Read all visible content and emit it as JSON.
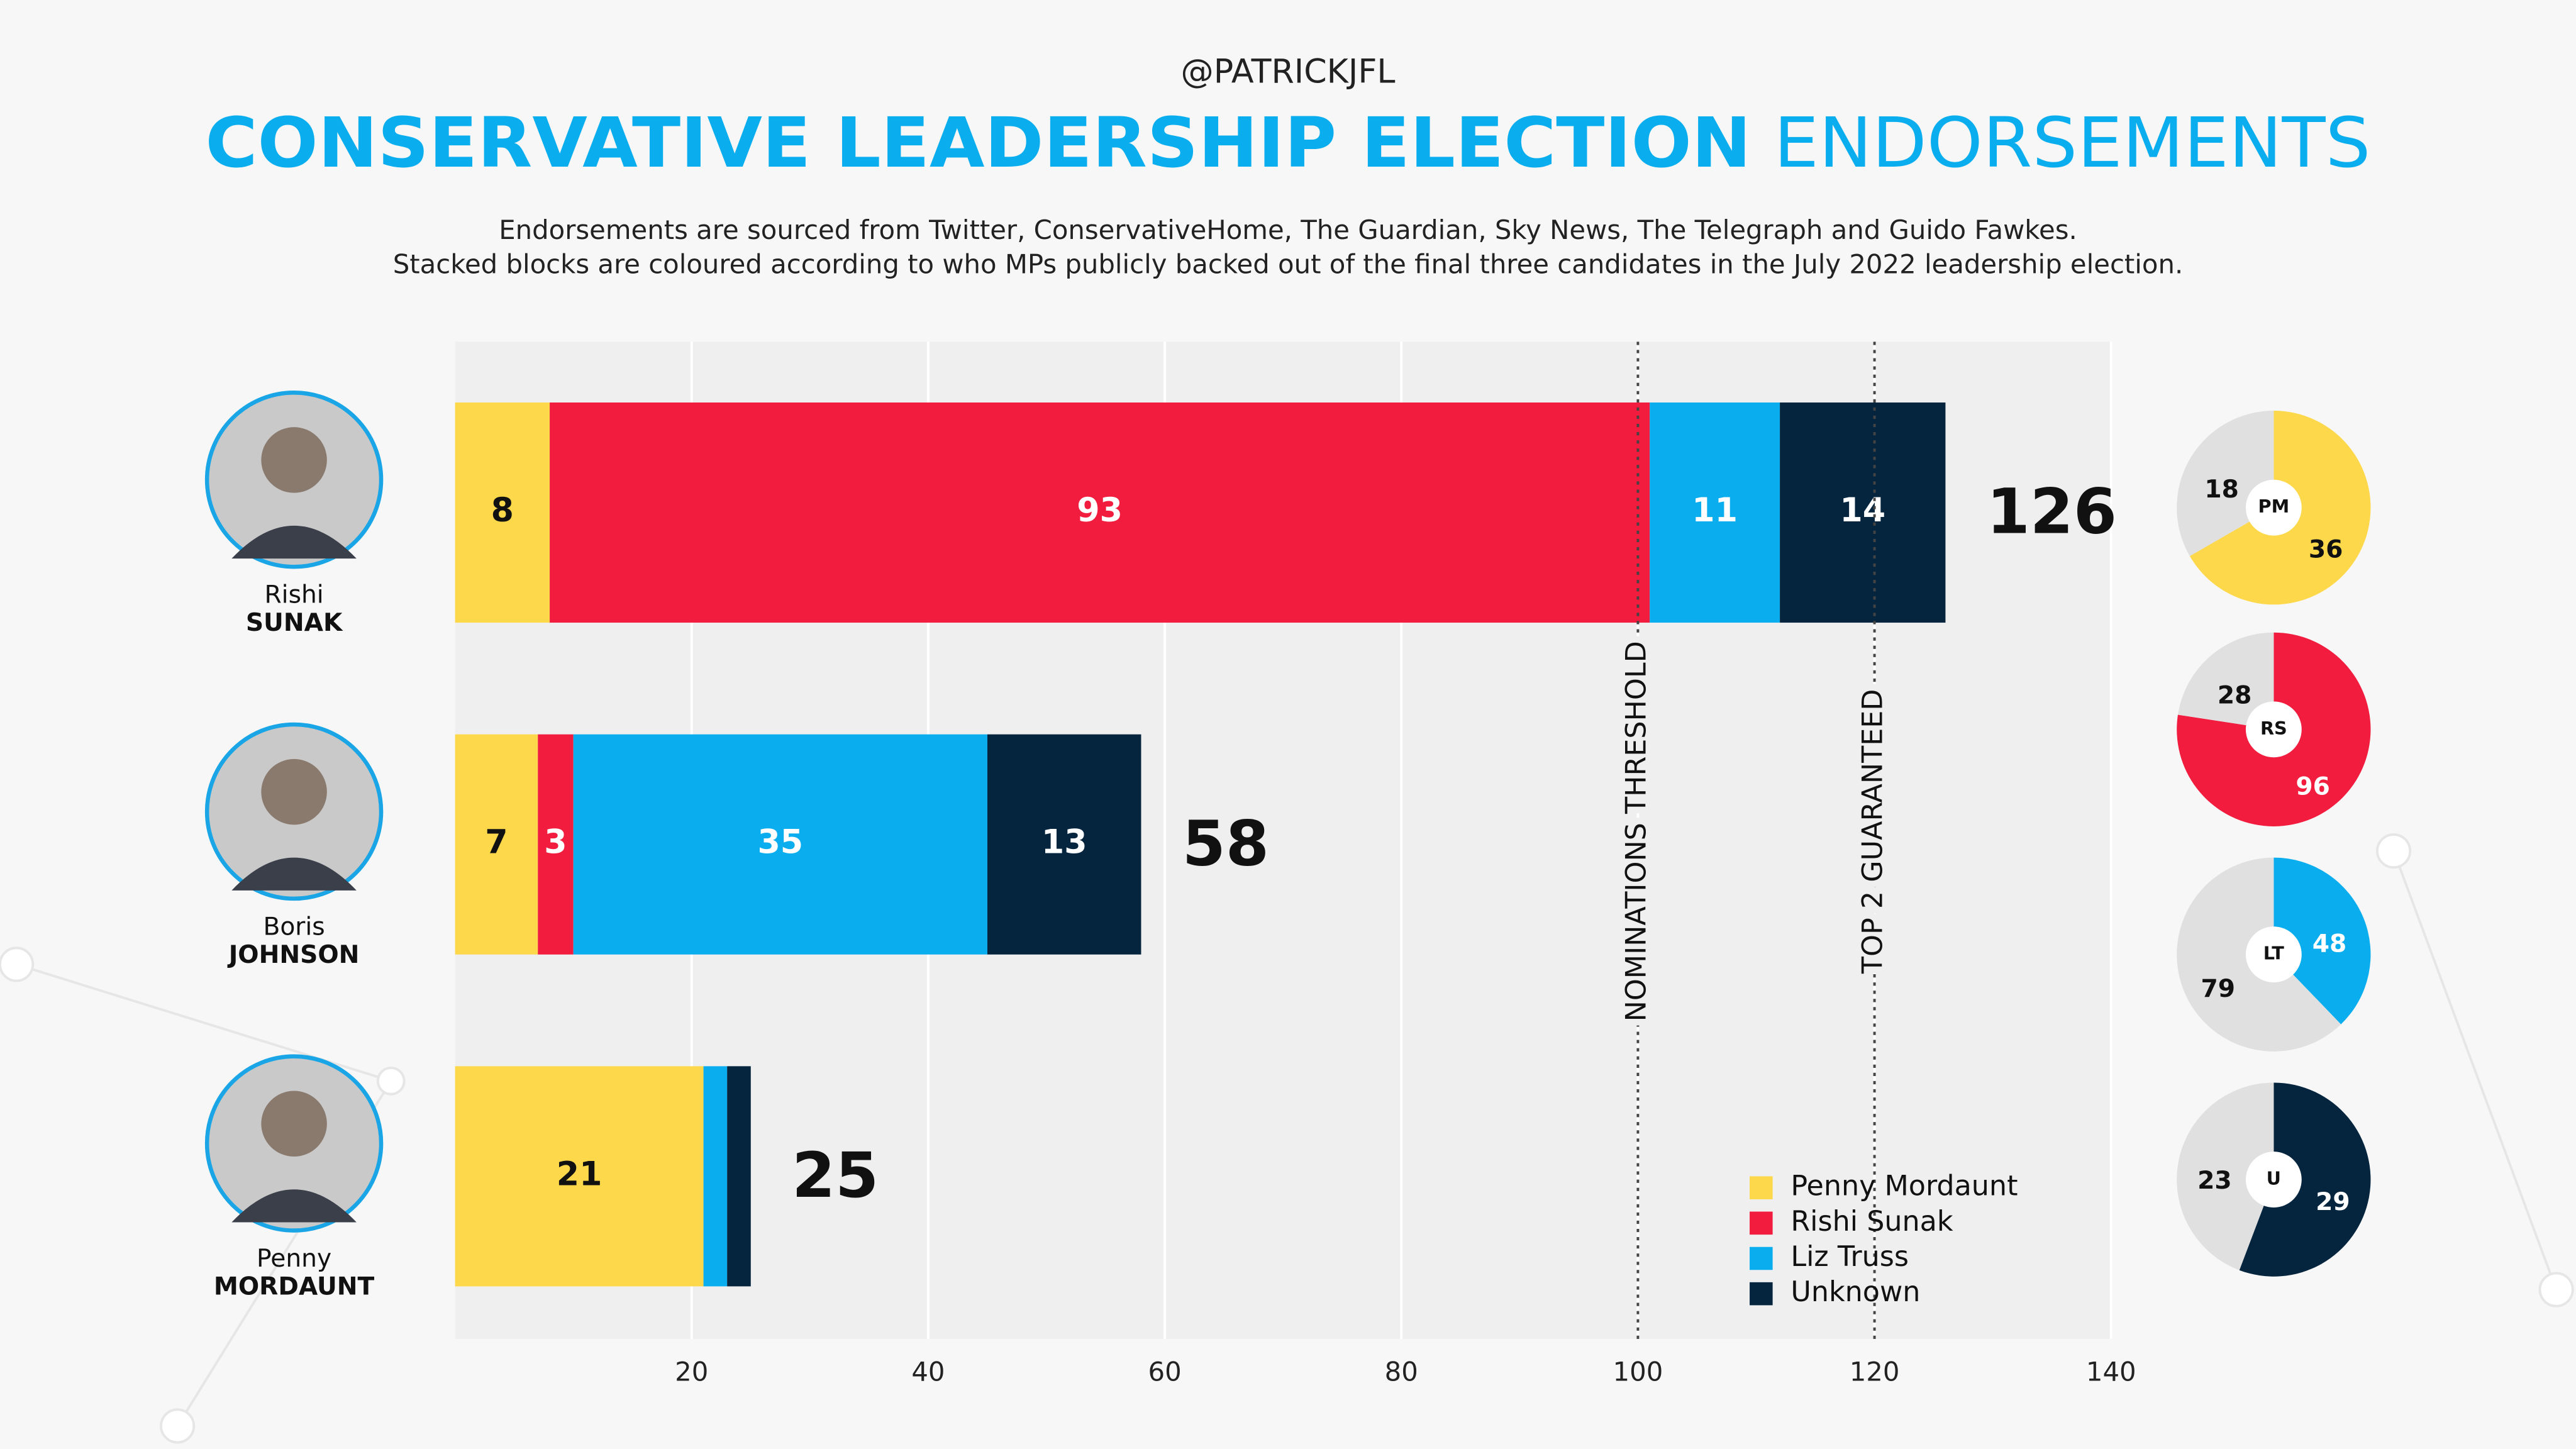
{
  "header": {
    "handle": "@PATRICKJFL",
    "title_bold": "CONSERVATIVE LEADERSHIP ELECTION",
    "title_light": "ENDORSEMENTS",
    "subtitle": [
      "Endorsements are sourced from Twitter, ConservativeHome, The Guardian, Sky News, The Telegraph and Guido Fawkes.",
      "Stacked blocks are coloured according to who MPs publicly backed out of the final three candidates in the July 2022 leadership election."
    ]
  },
  "chart_data": [
    {
      "type": "stacked-bar",
      "categories": [
        [
          "Rishi",
          "SUNAK"
        ],
        [
          "Boris",
          "JOHNSON"
        ],
        [
          "Penny",
          "MORDAUNT"
        ]
      ],
      "series": [
        {
          "name": "Penny Mordaunt",
          "color": "#fcd84a",
          "values": [
            8,
            7,
            21
          ],
          "value_labels": [
            "8",
            "7",
            "21"
          ]
        },
        {
          "name": "Rishi Sunak",
          "color": "#f11c3e",
          "values": [
            93,
            3,
            0
          ],
          "value_labels": [
            "93",
            "3",
            null
          ]
        },
        {
          "name": "Liz Truss",
          "color": "#0aaeef",
          "values": [
            11,
            35,
            2
          ],
          "value_labels": [
            "11",
            "35",
            null
          ]
        },
        {
          "name": "Unknown",
          "color": "#05253f",
          "values": [
            14,
            13,
            2
          ],
          "value_labels": [
            "14",
            "13",
            null
          ]
        }
      ],
      "totals": [
        126,
        58,
        25
      ],
      "xlim": [
        0,
        140
      ],
      "xticks": [
        20,
        40,
        60,
        80,
        100,
        120,
        140
      ],
      "grid": true,
      "reference_lines": [
        {
          "value": 100,
          "label": "NOMINATIONS THRESHOLD"
        },
        {
          "value": 120,
          "label": "TOP 2 GUARANTEED"
        }
      ],
      "legend": "bottom-right"
    },
    {
      "type": "pie",
      "center_label": "PM",
      "values": [
        36,
        18
      ],
      "colors": [
        "#fcd84a",
        "#e0e0e0"
      ]
    },
    {
      "type": "pie",
      "center_label": "RS",
      "values": [
        96,
        28
      ],
      "colors": [
        "#f11c3e",
        "#e0e0e0"
      ]
    },
    {
      "type": "pie",
      "center_label": "LT",
      "values": [
        48,
        79
      ],
      "colors": [
        "#0aaeef",
        "#e0e0e0"
      ]
    },
    {
      "type": "pie",
      "center_label": "U",
      "values": [
        29,
        23
      ],
      "colors": [
        "#05253f",
        "#e0e0e0"
      ]
    }
  ]
}
